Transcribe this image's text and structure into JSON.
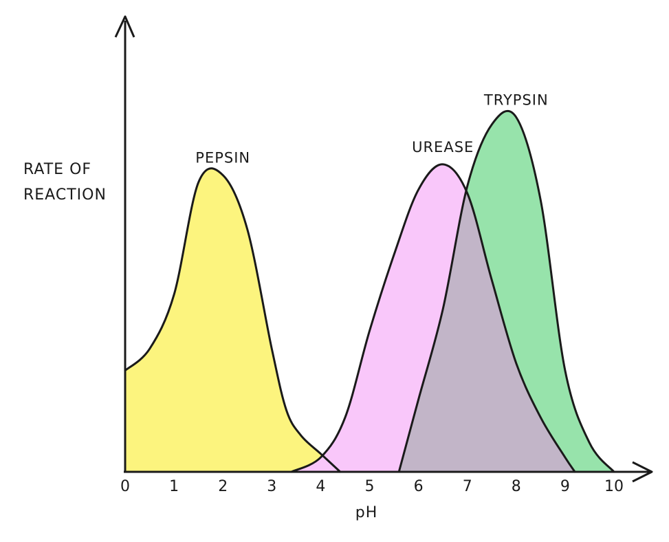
{
  "chart_data": {
    "type": "area",
    "xlabel": "pH",
    "ylabel_lines": [
      "RATE  OF",
      "REACTION"
    ],
    "xlim": [
      0,
      10
    ],
    "ylim": [
      0,
      1
    ],
    "x_ticks": [
      "0",
      "1",
      "2",
      "3",
      "4",
      "5",
      "6",
      "7",
      "8",
      "9",
      "10"
    ],
    "series": [
      {
        "name": "PEPSIN",
        "color": "#fcf47e",
        "x": [
          0,
          0.5,
          1,
          1.5,
          2,
          2.5,
          3,
          3.3,
          3.6,
          4,
          4.4
        ],
        "y": [
          0.28,
          0.34,
          0.49,
          0.8,
          0.82,
          0.67,
          0.34,
          0.17,
          0.1,
          0.05,
          0
        ]
      },
      {
        "name": "UREASE",
        "color": "#f9c7fa",
        "x": [
          3.4,
          4,
          4.5,
          5,
          5.5,
          6,
          6.5,
          7,
          7.5,
          8,
          8.5,
          9,
          9.2
        ],
        "y": [
          0,
          0.04,
          0.15,
          0.39,
          0.6,
          0.78,
          0.85,
          0.77,
          0.53,
          0.3,
          0.15,
          0.04,
          0
        ]
      },
      {
        "name": "TRYPSIN",
        "color": "#97e3ab",
        "x": [
          5.6,
          6,
          6.5,
          7,
          7.5,
          8,
          8.5,
          9,
          9.5,
          10
        ],
        "y": [
          0,
          0.2,
          0.45,
          0.79,
          0.96,
          0.98,
          0.75,
          0.28,
          0.08,
          0
        ]
      }
    ],
    "overlap_color": "#c2b5c8",
    "grid": false,
    "legend": "none"
  }
}
